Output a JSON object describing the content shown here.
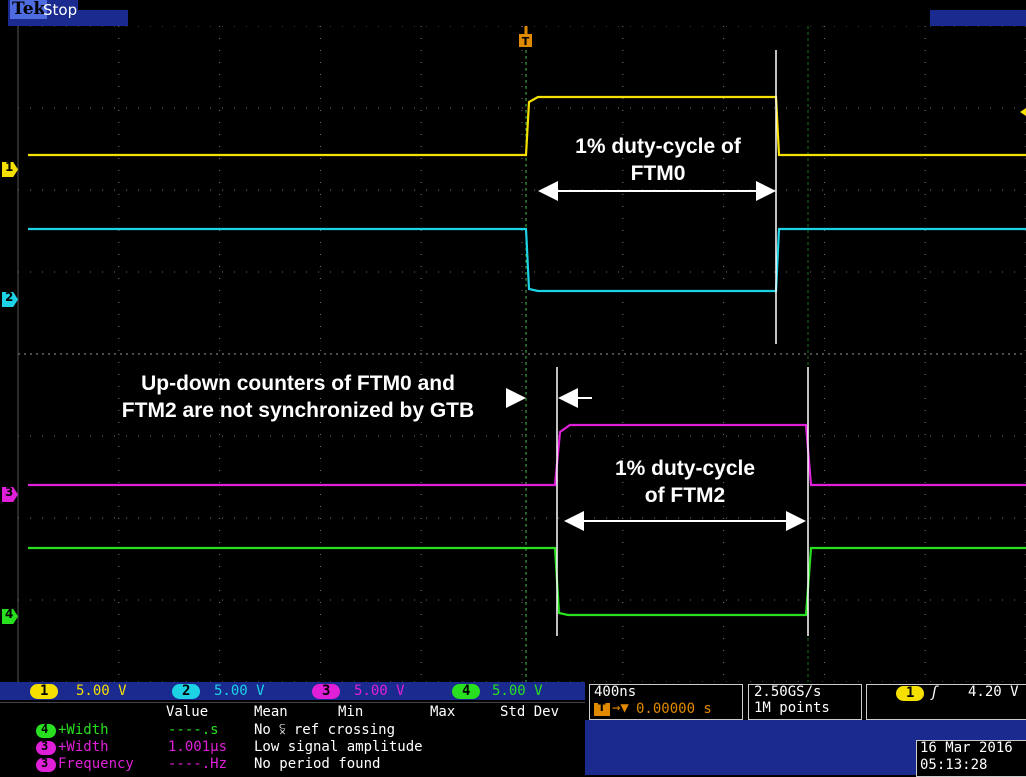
{
  "header": {
    "brand": "Tek",
    "state": "Stop"
  },
  "colors": {
    "ch1": "#f5e000",
    "ch2": "#1ed2e6",
    "ch3": "#e020d8",
    "ch4": "#28e020",
    "panel_blue": "#1a2a8f",
    "grid": "#8a8a8a"
  },
  "icons": {
    "trigger_marker": "trigger-T-icon",
    "trigger_slope": "rising-edge-icon"
  },
  "annotations": {
    "ftm0_line1": "1% duty-cycle of",
    "ftm0_line2": "FTM0",
    "sync_line1": "Up-down counters of FTM0 and",
    "sync_line2": "FTM2 are not synchronized by GTB",
    "ftm2_line1": "1% duty-cycle",
    "ftm2_line2": "of FTM2"
  },
  "channels": [
    {
      "num": "1",
      "scale": "5.00 V"
    },
    {
      "num": "2",
      "scale": "5.00 V"
    },
    {
      "num": "3",
      "scale": "5.00 V"
    },
    {
      "num": "4",
      "scale": "5.00 V"
    }
  ],
  "channel_markers": [
    "1",
    "2",
    "3",
    "4"
  ],
  "timebase": {
    "scale": "400ns",
    "position": "0.00000 s"
  },
  "acquisition": {
    "rate": "2.50GS/s",
    "points": "1M points"
  },
  "trigger": {
    "source": "1",
    "level": "4.20 V"
  },
  "measurements": {
    "headers": [
      "Value",
      "Mean",
      "Min",
      "Max",
      "Std Dev"
    ],
    "rows": [
      {
        "ch": "4",
        "name": "+Width",
        "value": "----.s",
        "status": "No ⫁ ref crossing"
      },
      {
        "ch": "3",
        "name": "+Width",
        "value": "1.001μs",
        "status": "Low signal amplitude"
      },
      {
        "ch": "3",
        "name": "Frequency",
        "value": "----.Hz",
        "status": "No period found"
      }
    ]
  },
  "datetime": {
    "date": "16 Mar 2016",
    "time": "05:13:28"
  }
}
